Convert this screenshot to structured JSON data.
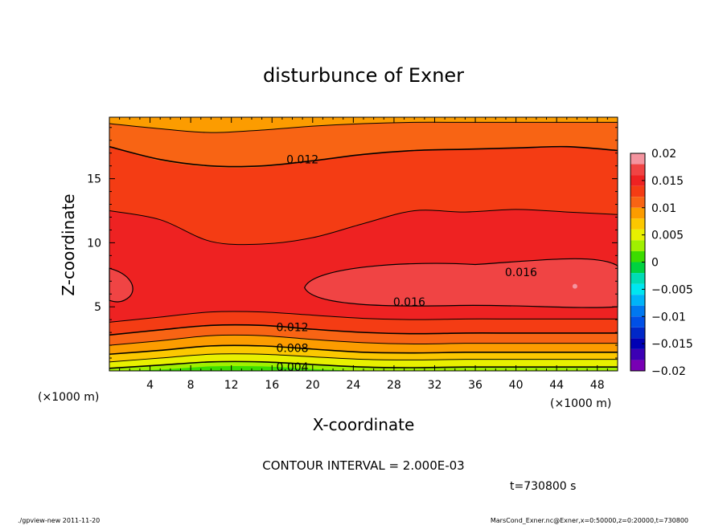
{
  "chart_data": {
    "type": "contour",
    "title": "disturbunce of Exner",
    "xlabel": "X-coordinate",
    "ylabel": "Z-coordinate",
    "x_unit_left": "(×1000 m)",
    "x_unit_right": "(×1000 m)",
    "xlim": [
      0,
      50
    ],
    "ylim": [
      0,
      19.8
    ],
    "x_ticks": [
      4,
      8,
      12,
      16,
      20,
      24,
      28,
      32,
      36,
      40,
      44,
      48
    ],
    "x_tick_labels": [
      "4",
      "8",
      "12",
      "16",
      "20",
      "24",
      "28",
      "32",
      "36",
      "40",
      "44",
      "48"
    ],
    "y_ticks": [
      5,
      10,
      15
    ],
    "y_tick_labels": [
      "5",
      "10",
      "15"
    ],
    "contour_interval_text": "CONTOUR INTERVAL = 2.000E-03",
    "time_text": "t=730800 s",
    "contour_labels": [
      {
        "text": "0.012",
        "x": 19,
        "z": 16.5
      },
      {
        "text": "0.016",
        "x": 40.5,
        "z": 7.7
      },
      {
        "text": "0.016",
        "x": 29.5,
        "z": 5.4
      },
      {
        "text": "0.012",
        "x": 18,
        "z": 3.4
      },
      {
        "text": "0.008",
        "x": 18,
        "z": 1.8
      },
      {
        "text": "0.004",
        "x": 18,
        "z": 0.3
      }
    ],
    "colorbar": {
      "min": -0.02,
      "max": 0.02,
      "tick_values": [
        0.02,
        0.015,
        0.01,
        0.005,
        0,
        -0.005,
        -0.01,
        -0.015,
        -0.02
      ],
      "tick_labels": [
        "0.02",
        "0.015",
        "0.01",
        "0.005",
        "0",
        "−0.005",
        "−0.01",
        "−0.015",
        "−0.02"
      ],
      "bands": [
        {
          "lo": 0.018,
          "hi": 0.02,
          "color": "#f4949f"
        },
        {
          "lo": 0.016,
          "hi": 0.018,
          "color": "#f04444"
        },
        {
          "lo": 0.014,
          "hi": 0.016,
          "color": "#ee2222"
        },
        {
          "lo": 0.012,
          "hi": 0.014,
          "color": "#f43c14"
        },
        {
          "lo": 0.01,
          "hi": 0.012,
          "color": "#f86414"
        },
        {
          "lo": 0.008,
          "hi": 0.01,
          "color": "#fc9c00"
        },
        {
          "lo": 0.006,
          "hi": 0.008,
          "color": "#fcc800"
        },
        {
          "lo": 0.004,
          "hi": 0.006,
          "color": "#e8f000"
        },
        {
          "lo": 0.002,
          "hi": 0.004,
          "color": "#a0f000"
        },
        {
          "lo": 0.0,
          "hi": 0.002,
          "color": "#3cdc00"
        },
        {
          "lo": -0.002,
          "hi": 0.0,
          "color": "#00d240"
        },
        {
          "lo": -0.004,
          "hi": -0.002,
          "color": "#00dcb4"
        },
        {
          "lo": -0.006,
          "hi": -0.004,
          "color": "#00e6f0"
        },
        {
          "lo": -0.008,
          "hi": -0.006,
          "color": "#00b4f8"
        },
        {
          "lo": -0.01,
          "hi": -0.008,
          "color": "#0078f0"
        },
        {
          "lo": -0.012,
          "hi": -0.01,
          "color": "#0050e6"
        },
        {
          "lo": -0.014,
          "hi": -0.012,
          "color": "#0028c8"
        },
        {
          "lo": -0.016,
          "hi": -0.014,
          "color": "#0000b4"
        },
        {
          "lo": -0.018,
          "hi": -0.016,
          "color": "#3c00b4"
        },
        {
          "lo": -0.02,
          "hi": -0.018,
          "color": "#7800b4"
        }
      ]
    },
    "field_bands": [
      {
        "level": "0.004-0.006",
        "color": "#a0f000",
        "top": [
          0.2,
          0.45,
          0.7,
          0.7,
          0.5,
          0.3,
          0.25,
          0.3,
          0.3,
          0.3,
          0.3
        ]
      },
      {
        "level": "0.006-0.008",
        "color": "#e8f000",
        "top": [
          0.7,
          1.0,
          1.3,
          1.3,
          1.1,
          0.9,
          0.85,
          0.9,
          0.9,
          0.9,
          0.9
        ]
      },
      {
        "level": "0.008-0.010",
        "color": "#fcc800",
        "top": [
          1.3,
          1.6,
          1.95,
          1.95,
          1.7,
          1.45,
          1.4,
          1.45,
          1.45,
          1.45,
          1.45
        ]
      },
      {
        "level": "0.010-0.012",
        "color": "#fc9c00",
        "top": [
          2.0,
          2.35,
          2.75,
          2.75,
          2.45,
          2.2,
          2.1,
          2.15,
          2.15,
          2.15,
          2.15
        ]
      },
      {
        "level": "0.012-0.014",
        "color": "#f86414",
        "top": [
          2.8,
          3.2,
          3.55,
          3.55,
          3.25,
          3.0,
          2.9,
          2.95,
          2.95,
          2.95,
          2.95
        ]
      },
      {
        "level": "0.014-0.016",
        "color": "#f43c14",
        "top": [
          3.8,
          4.2,
          4.6,
          4.6,
          4.35,
          4.1,
          4.0,
          4.05,
          4.05,
          4.05,
          4.05
        ]
      },
      {
        "level": "0.016-0.018",
        "color": "#ee2222",
        "top": [
          12.5,
          11.8,
          10.1,
          9.9,
          10.4,
          11.5,
          12.5,
          12.4,
          12.6,
          12.4,
          12.2
        ]
      },
      {
        "level": "0.014-0.016",
        "color": "#f43c14",
        "top": [
          17.5,
          16.4,
          15.9,
          15.9,
          16.4,
          16.9,
          17.2,
          17.3,
          17.4,
          17.5,
          17.2
        ]
      },
      {
        "level": "0.012-0.014",
        "color": "#f86414",
        "top": [
          19.8,
          19.8,
          19.8,
          19.8,
          19.8,
          19.8,
          19.8,
          19.8,
          19.8,
          19.8,
          19.8
        ]
      }
    ],
    "top_band_color": "#fc9c00",
    "top_band_bottom": [
      19.3,
      18.9,
      18.6,
      18.8,
      19.1,
      19.3,
      19.4,
      19.4,
      19.4,
      19.4,
      19.4
    ]
  },
  "footer": {
    "left": "./gpview-new   2011-11-20",
    "right": "MarsCond_Exner.nc@Exner,x=0:50000,z=0:20000,t=730800"
  }
}
